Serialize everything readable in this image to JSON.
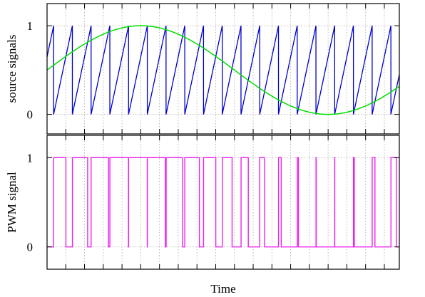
{
  "chart_data": [
    {
      "type": "line",
      "panel": "top",
      "ylabel": "source signals",
      "xlabel": "",
      "xlim": [
        0,
        18.8
      ],
      "ylim": [
        -0.22,
        1.25
      ],
      "yticks": [
        0,
        1
      ],
      "xticks": [
        0,
        1,
        2,
        3,
        4,
        5,
        6,
        7,
        8,
        9,
        10,
        11,
        12,
        13,
        14,
        15,
        16,
        17,
        18
      ],
      "grid": true,
      "series": [
        {
          "kind": "sawtooth",
          "color": "#0000cc",
          "period": 1,
          "phase": 0.35,
          "min": 0,
          "max": 1
        },
        {
          "kind": "sine",
          "color": "#00dd00",
          "offset": 0.5,
          "amplitude": 0.5,
          "period": 20,
          "peak_x": 5
        }
      ]
    },
    {
      "type": "line",
      "panel": "bottom",
      "ylabel": "PWM signal",
      "xlabel": "Time",
      "xlim": [
        0,
        18.8
      ],
      "ylim": [
        -0.25,
        1.25
      ],
      "yticks": [
        0,
        1
      ],
      "xticks": [
        0,
        1,
        2,
        3,
        4,
        5,
        6,
        7,
        8,
        9,
        10,
        11,
        12,
        13,
        14,
        15,
        16,
        17,
        18
      ],
      "grid": true,
      "series": [
        {
          "kind": "pwm",
          "color": "#ee22ee",
          "description_source": "sawtooth vs sine comparison"
        }
      ]
    }
  ],
  "labels": {
    "top_ylabel": "source signals",
    "bottom_ylabel": "PWM signal",
    "xlabel": "Time",
    "top_tick_1": "1",
    "top_tick_0": "0",
    "bottom_tick_1": "1",
    "bottom_tick_0": "0"
  }
}
